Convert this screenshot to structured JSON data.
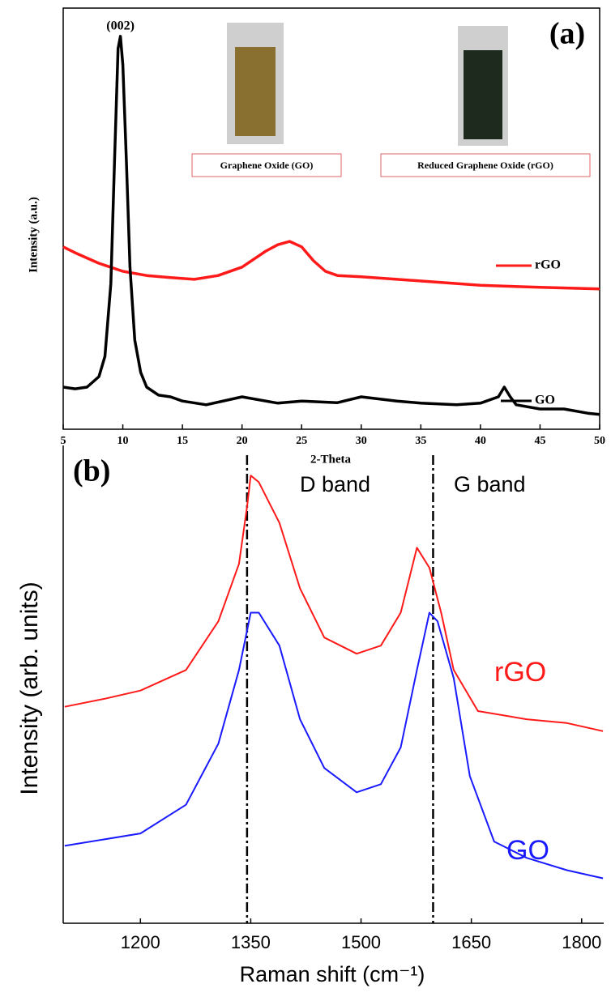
{
  "chart_data": [
    {
      "type": "line",
      "panel_label": "(a)",
      "peak_label": "(002)",
      "ylabel": "Intensity (a.u.)",
      "xlabel": "2-Theta",
      "insets": [
        "Graphene Oxide (GO)",
        "Reduced Graphene Oxide (rGO)"
      ],
      "xlim": [
        5,
        50
      ],
      "xticks": [
        5,
        10,
        15,
        20,
        25,
        30,
        35,
        40,
        45,
        50
      ],
      "ylim": [
        0,
        100
      ],
      "series": [
        {
          "name": "rGO",
          "color": "#ff1a1a",
          "x": [
            5,
            6,
            8,
            10,
            12,
            14,
            16,
            18,
            20,
            21,
            22,
            23,
            24,
            25,
            26,
            27,
            28,
            30,
            33,
            36,
            40,
            45,
            50
          ],
          "values": [
            43.3,
            41.9,
            39.4,
            37.5,
            36.5,
            36,
            35.6,
            36.5,
            38.5,
            40.4,
            42.3,
            43.8,
            44.6,
            43.3,
            40,
            37.5,
            36.5,
            36.2,
            35.6,
            35,
            34.2,
            33.7,
            33.3
          ]
        },
        {
          "name": "GO",
          "color": "#000000",
          "x": [
            5,
            6,
            7,
            8,
            8.5,
            9,
            9.3,
            9.6,
            9.8,
            10,
            10.3,
            10.6,
            11,
            11.5,
            12,
            13,
            14,
            15,
            17,
            20,
            23,
            25,
            28,
            30,
            33,
            35,
            38,
            40,
            41.5,
            42,
            42.5,
            43,
            45,
            47,
            49,
            50
          ],
          "values": [
            10,
            9.6,
            10,
            12.5,
            17.3,
            34.6,
            63.5,
            90.4,
            93.3,
            86.5,
            63.5,
            38.5,
            21.2,
            13.5,
            10,
            8.1,
            7.7,
            6.7,
            5.8,
            7.7,
            6.2,
            6.7,
            6.3,
            7.7,
            6.7,
            6.2,
            5.8,
            6.2,
            7.7,
            10,
            7.7,
            5.8,
            4.8,
            4.8,
            3.8,
            3.5
          ]
        }
      ]
    },
    {
      "type": "line",
      "panel_label": "(b)",
      "ylabel": "Intensity (arb. units)",
      "xlabel": "Raman shift (cm⁻¹)",
      "band_labels": [
        "D band",
        "G band"
      ],
      "vlines": [
        1345,
        1598
      ],
      "xlim": [
        1095,
        1830
      ],
      "xticks": [
        1200,
        1350,
        1500,
        1650,
        1800
      ],
      "ylim": [
        0,
        100
      ],
      "series": [
        {
          "name": "rGO",
          "color": "#ff1a1a",
          "x": [
            1097,
            1152,
            1200,
            1262,
            1306,
            1334,
            1345,
            1350,
            1361,
            1389,
            1417,
            1450,
            1494,
            1527,
            1554,
            1576,
            1593,
            1609,
            1626,
            1659,
            1725,
            1780,
            1829
          ],
          "values": [
            45.3,
            47,
            48.7,
            53,
            63.2,
            75.2,
            87.2,
            93.7,
            92.3,
            83.8,
            70.1,
            59.8,
            56.4,
            58.1,
            65,
            78.6,
            74.4,
            65,
            53,
            44.4,
            42.7,
            41.9,
            40.2
          ]
        },
        {
          "name": "GO",
          "color": "#1a1aff",
          "x": [
            1097,
            1200,
            1262,
            1306,
            1334,
            1350,
            1361,
            1389,
            1417,
            1450,
            1494,
            1527,
            1554,
            1576,
            1593,
            1604,
            1626,
            1648,
            1681,
            1725,
            1780,
            1829
          ],
          "values": [
            16.2,
            18.8,
            24.8,
            37.6,
            53,
            65,
            65,
            58.1,
            42.7,
            32.5,
            27.4,
            29.1,
            36.8,
            53,
            65,
            63.2,
            51.3,
            30.8,
            17.1,
            13.7,
            11.1,
            9.4
          ]
        }
      ]
    }
  ]
}
